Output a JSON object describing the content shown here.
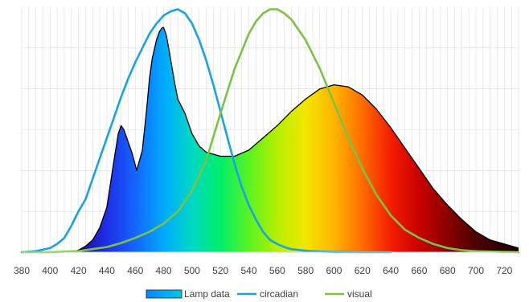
{
  "chart_data": {
    "type": "area",
    "title": "",
    "xlabel": "",
    "ylabel": "",
    "xlim": [
      380,
      730
    ],
    "ylim": [
      0,
      1.2
    ],
    "grid": true,
    "legend_position": "bottom",
    "x_ticks": [
      380,
      400,
      420,
      440,
      460,
      480,
      500,
      520,
      540,
      560,
      580,
      600,
      620,
      640,
      660,
      680,
      700,
      720
    ],
    "series": [
      {
        "name": "Lamp data",
        "style": "spectrum-fill",
        "color": "#000000",
        "x": [
          415,
          420,
          425,
          430,
          435,
          440,
          445,
          448,
          450,
          452,
          455,
          458,
          461,
          465,
          468,
          470,
          472,
          475,
          477,
          479,
          480,
          482,
          485,
          488,
          490,
          495,
          500,
          505,
          510,
          520,
          530,
          540,
          550,
          560,
          570,
          580,
          590,
          600,
          610,
          620,
          630,
          640,
          650,
          660,
          670,
          680,
          690,
          700,
          710,
          720,
          730
        ],
        "y": [
          0.0,
          0.01,
          0.03,
          0.06,
          0.12,
          0.22,
          0.45,
          0.58,
          0.62,
          0.6,
          0.54,
          0.48,
          0.4,
          0.5,
          0.7,
          0.85,
          0.95,
          1.04,
          1.08,
          1.1,
          1.1,
          1.06,
          0.94,
          0.82,
          0.75,
          0.68,
          0.58,
          0.52,
          0.49,
          0.47,
          0.47,
          0.5,
          0.56,
          0.62,
          0.69,
          0.75,
          0.8,
          0.82,
          0.81,
          0.77,
          0.7,
          0.61,
          0.51,
          0.41,
          0.31,
          0.23,
          0.16,
          0.1,
          0.06,
          0.04,
          0.02
        ]
      },
      {
        "name": "circadian",
        "style": "line",
        "color": "#1aa3e0",
        "x": [
          380,
          390,
          400,
          405,
          410,
          415,
          420,
          425,
          430,
          435,
          440,
          445,
          450,
          455,
          460,
          465,
          470,
          475,
          480,
          485,
          490,
          495,
          500,
          505,
          510,
          515,
          520,
          525,
          530,
          535,
          540,
          545,
          550,
          555,
          560,
          565,
          570,
          580,
          590,
          600,
          620,
          640
        ],
        "y": [
          0.0,
          0.005,
          0.02,
          0.04,
          0.07,
          0.13,
          0.2,
          0.26,
          0.36,
          0.46,
          0.56,
          0.66,
          0.76,
          0.85,
          0.93,
          1.0,
          1.07,
          1.12,
          1.16,
          1.18,
          1.19,
          1.17,
          1.12,
          1.04,
          0.94,
          0.82,
          0.69,
          0.56,
          0.43,
          0.32,
          0.23,
          0.16,
          0.1,
          0.06,
          0.04,
          0.025,
          0.015,
          0.007,
          0.003,
          0.001,
          0.0,
          0.0
        ]
      },
      {
        "name": "visual",
        "style": "line",
        "color": "#7cc243",
        "x": [
          380,
          400,
          420,
          440,
          450,
          460,
          470,
          480,
          490,
          500,
          510,
          520,
          530,
          540,
          545,
          550,
          555,
          560,
          565,
          570,
          580,
          590,
          600,
          610,
          620,
          630,
          640,
          650,
          660,
          670,
          680,
          690,
          700,
          720,
          730
        ],
        "y": [
          0.0,
          0.0,
          0.005,
          0.025,
          0.045,
          0.07,
          0.1,
          0.14,
          0.2,
          0.3,
          0.45,
          0.68,
          0.9,
          1.07,
          1.13,
          1.17,
          1.19,
          1.19,
          1.17,
          1.14,
          1.04,
          0.9,
          0.73,
          0.56,
          0.41,
          0.28,
          0.18,
          0.11,
          0.07,
          0.04,
          0.02,
          0.01,
          0.005,
          0.001,
          0.0
        ]
      }
    ]
  }
}
